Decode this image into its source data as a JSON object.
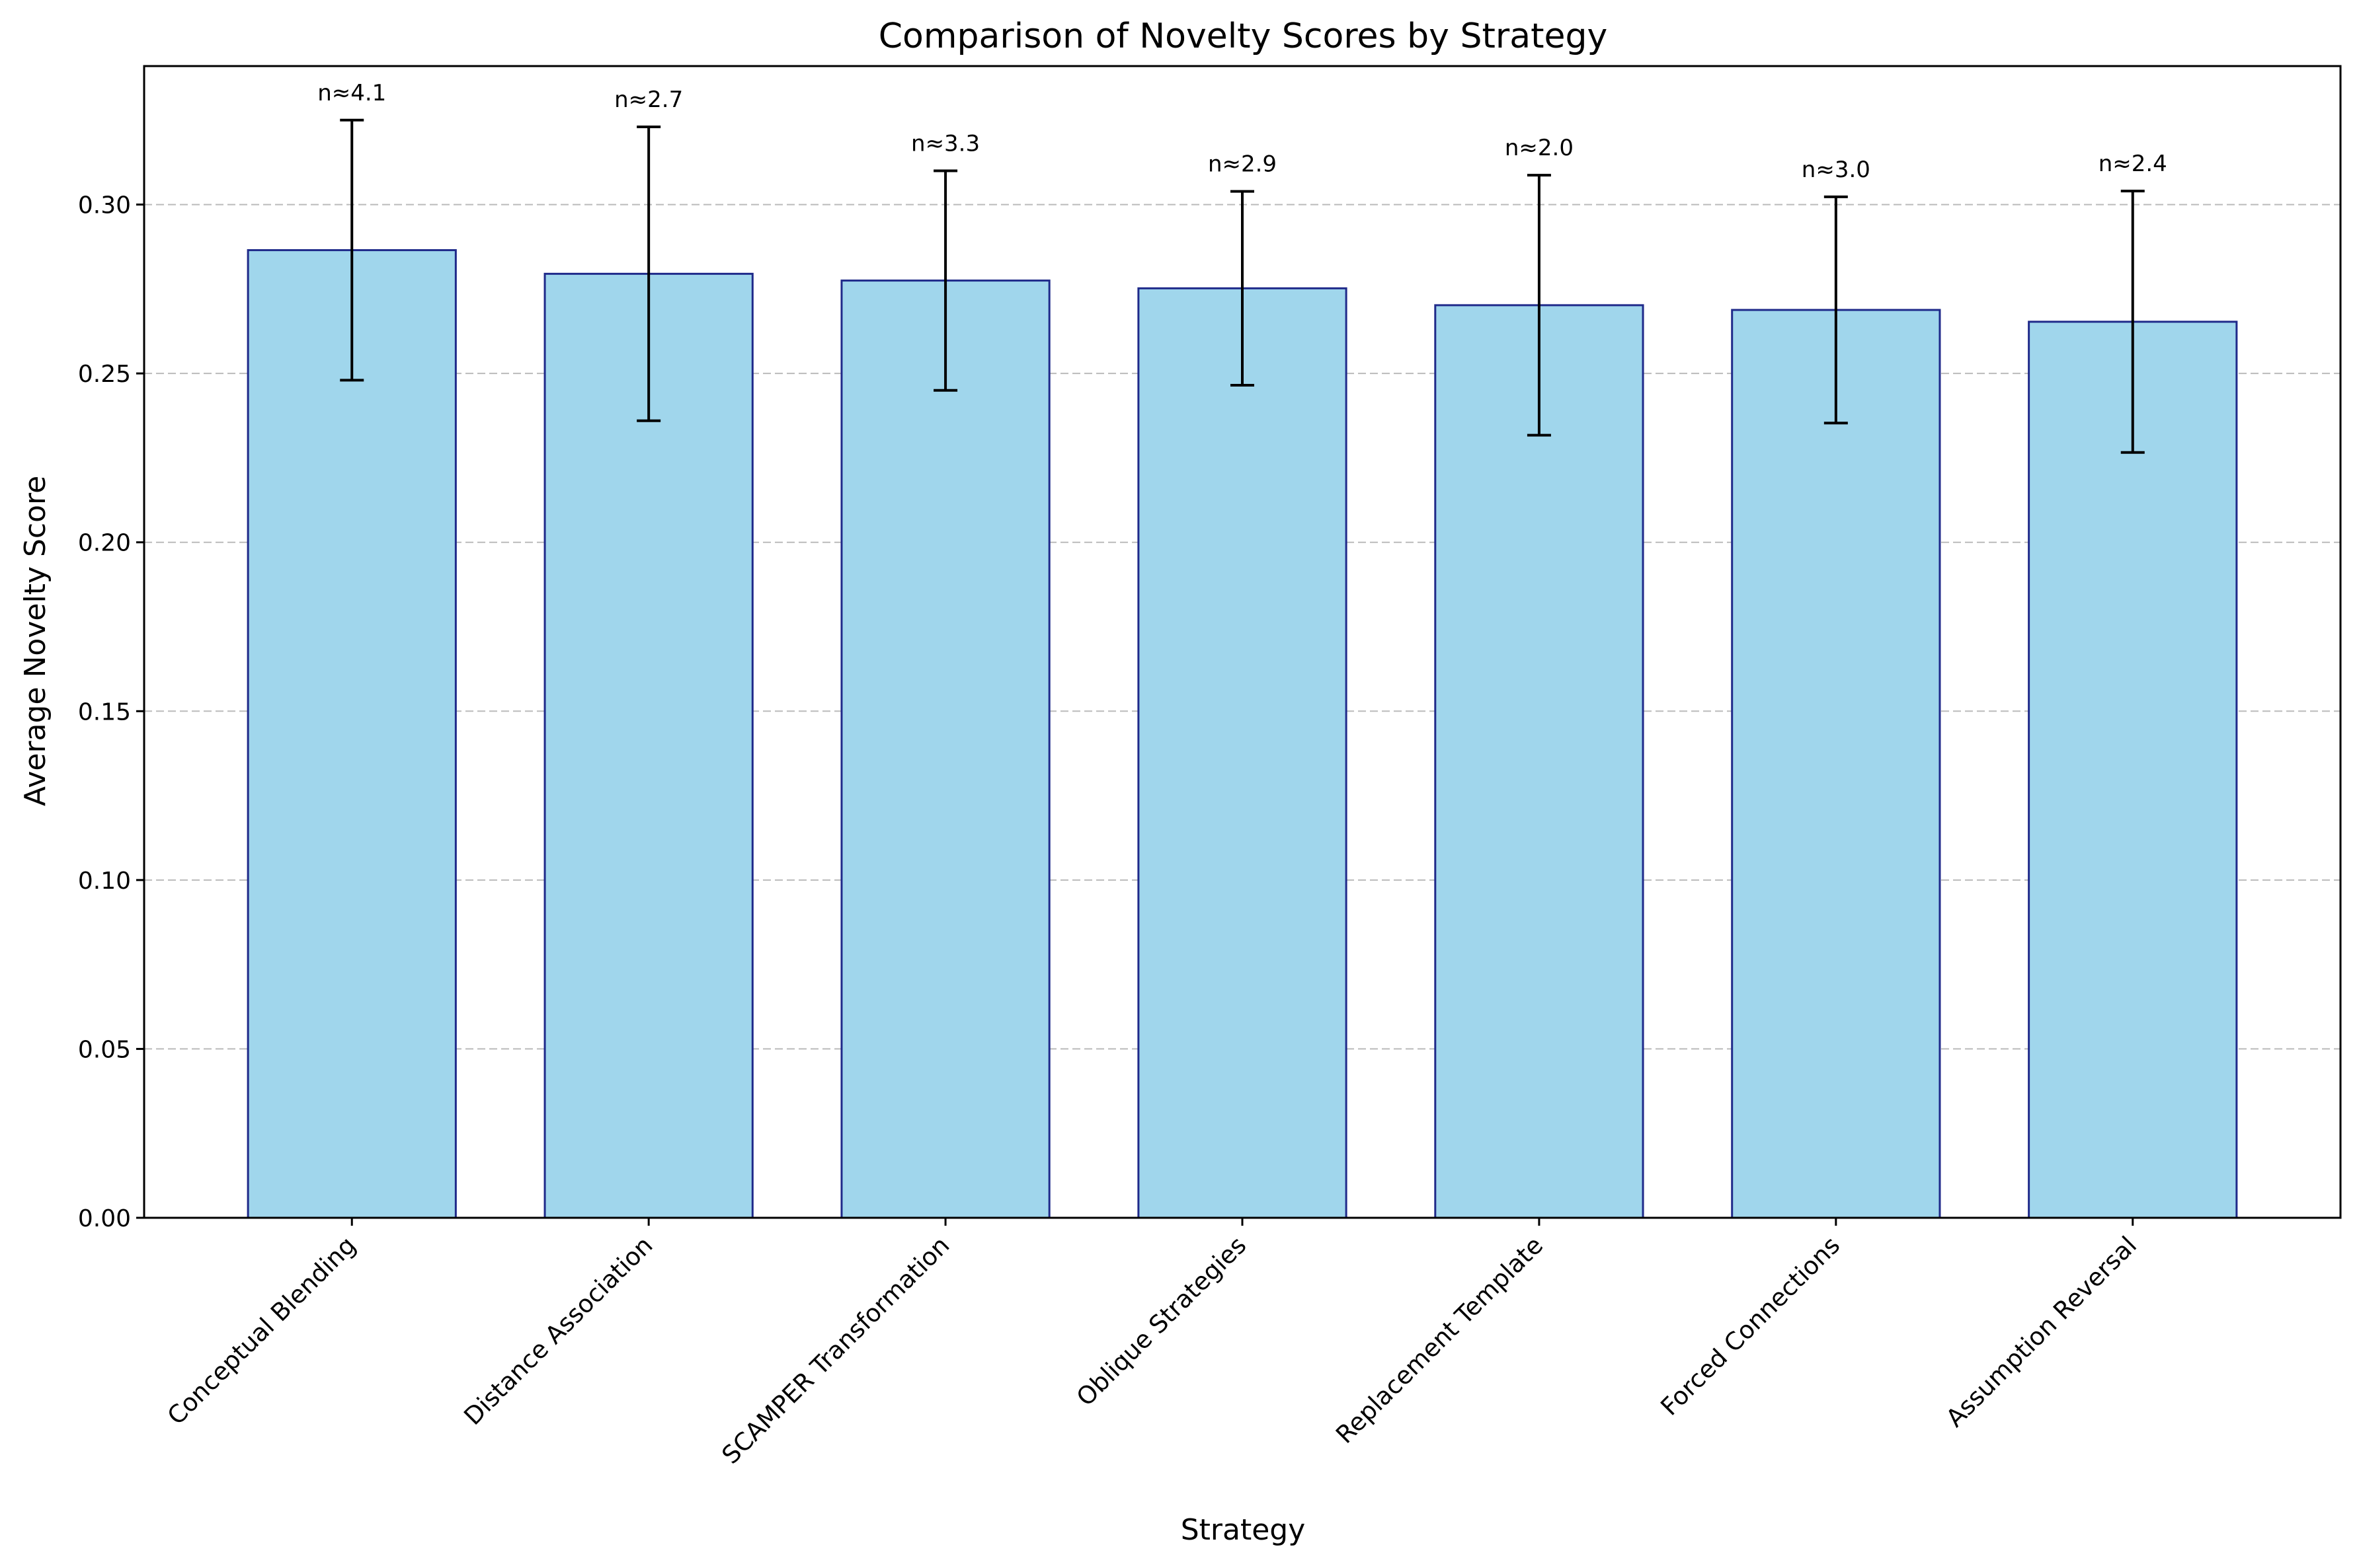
{
  "chart_data": {
    "type": "bar",
    "title": "Comparison of Novelty Scores by Strategy",
    "xlabel": "Strategy",
    "ylabel": "Average Novelty Score",
    "ylim": [
      0,
      0.341
    ],
    "yticks": [
      "0.00",
      "0.05",
      "0.10",
      "0.15",
      "0.20",
      "0.25",
      "0.30"
    ],
    "ytick_values": [
      0,
      0.05,
      0.1,
      0.15,
      0.2,
      0.25,
      0.3
    ],
    "grid": "horizontal dashed",
    "categories": [
      "Conceptual Blending",
      "Distance Association",
      "SCAMPER Transformation",
      "Oblique Strategies",
      "Replacement Template",
      "Forced Connections",
      "Assumption Reversal"
    ],
    "values": [
      0.2865,
      0.2795,
      0.2775,
      0.2752,
      0.2702,
      0.2688,
      0.2653
    ],
    "errors": [
      0.0385,
      0.0435,
      0.0325,
      0.0287,
      0.0385,
      0.0335,
      0.0387
    ],
    "annotations": [
      "n≈4.1",
      "n≈2.7",
      "n≈3.3",
      "n≈2.9",
      "n≈2.0",
      "n≈3.0",
      "n≈2.4"
    ],
    "colors": {
      "bar_fill": "#a0d6ec",
      "bar_edge": "#1f2a8a",
      "error_bar": "#000000",
      "grid": "#bbbbbb"
    }
  }
}
